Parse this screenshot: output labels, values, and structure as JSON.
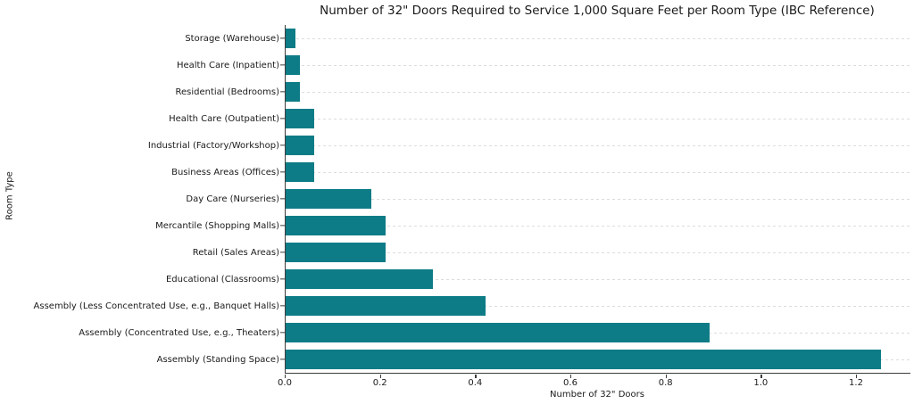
{
  "chart_data": {
    "type": "bar",
    "orientation": "horizontal",
    "title": "Number of 32\" Doors Required to Service 1,000 Square Feet per Room Type (IBC Reference)",
    "xlabel": "Number of 32\" Doors",
    "ylabel": "Room Type",
    "categories": [
      "Storage (Warehouse)",
      "Health Care (Inpatient)",
      "Residential (Bedrooms)",
      "Health Care (Outpatient)",
      "Industrial (Factory/Workshop)",
      "Business Areas (Offices)",
      "Day Care (Nurseries)",
      "Mercantile (Shopping Malls)",
      "Retail (Sales Areas)",
      "Educational (Classrooms)",
      "Assembly (Less Concentrated Use, e.g., Banquet Halls)",
      "Assembly (Concentrated Use, e.g., Theaters)",
      "Assembly (Standing Space)"
    ],
    "values": [
      0.02,
      0.03,
      0.03,
      0.06,
      0.06,
      0.06,
      0.18,
      0.21,
      0.21,
      0.31,
      0.42,
      0.89,
      1.25
    ],
    "xlim": [
      0,
      1.3125
    ],
    "xticks": {
      "values": [
        0.0,
        0.2,
        0.4,
        0.6,
        0.8,
        1.0,
        1.2
      ],
      "labels": [
        "0.0",
        "0.2",
        "0.4",
        "0.6",
        "0.8",
        "1.0",
        "1.2"
      ]
    },
    "bar_color": "#0e7c86",
    "grid": {
      "axis": "y",
      "style": "dashed",
      "color": "#dcdcdc"
    },
    "legend": "none"
  }
}
